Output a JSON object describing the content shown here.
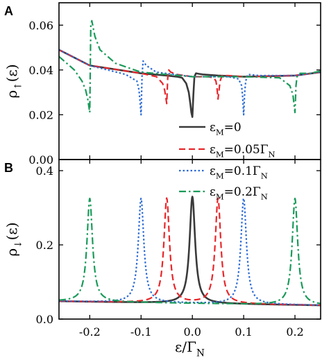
{
  "chart_data": [
    {
      "type": "line",
      "panel_label": "A",
      "ylabel": {
        "base": "ρ",
        "sub": "↑",
        "arg": "(ε)"
      },
      "xlim": [
        -0.26,
        0.25
      ],
      "ylim": [
        0.0,
        0.07
      ],
      "yticks": [
        0.0,
        0.02,
        0.04,
        0.06
      ],
      "ytick_labels": [
        "0.00",
        "0.02",
        "0.04",
        "0.06"
      ],
      "xticks": [
        -0.2,
        -0.1,
        0.0,
        0.1,
        0.2
      ],
      "series": [
        {
          "name": "εM=0",
          "color": "#3a3a3a",
          "style": "solid",
          "x": [
            -0.26,
            -0.2,
            -0.1,
            -0.05,
            -0.03,
            -0.02,
            -0.012,
            -0.007,
            -0.004,
            -0.002,
            0.0,
            0.002,
            0.004,
            0.007,
            0.012,
            0.02,
            0.05,
            0.1,
            0.2,
            0.25
          ],
          "y": [
            0.049,
            0.042,
            0.0385,
            0.0375,
            0.037,
            0.0365,
            0.034,
            0.03,
            0.025,
            0.021,
            0.019,
            0.029,
            0.037,
            0.0385,
            0.0383,
            0.038,
            0.0375,
            0.037,
            0.0375,
            0.039
          ]
        },
        {
          "name": "εM=0.05ΓN",
          "color": "#e8262a",
          "style": "dashed",
          "x": [
            -0.26,
            -0.2,
            -0.1,
            -0.07,
            -0.058,
            -0.054,
            -0.052,
            -0.05,
            -0.048,
            -0.046,
            -0.042,
            -0.03,
            0.0,
            0.03,
            0.042,
            0.046,
            0.048,
            0.05,
            0.052,
            0.054,
            0.058,
            0.07,
            0.1,
            0.2,
            0.25
          ],
          "y": [
            0.049,
            0.042,
            0.0385,
            0.037,
            0.034,
            0.031,
            0.028,
            0.025,
            0.0365,
            0.04,
            0.039,
            0.038,
            0.037,
            0.037,
            0.0365,
            0.035,
            0.032,
            0.027,
            0.031,
            0.035,
            0.0375,
            0.0375,
            0.037,
            0.0375,
            0.039
          ]
        },
        {
          "name": "εM=0.1ΓN",
          "color": "#2b6ad6",
          "style": "dotted",
          "x": [
            -0.26,
            -0.2,
            -0.13,
            -0.108,
            -0.104,
            -0.102,
            -0.1,
            -0.098,
            -0.096,
            -0.09,
            -0.07,
            0.0,
            0.07,
            0.09,
            0.096,
            0.098,
            0.1,
            0.102,
            0.104,
            0.108,
            0.13,
            0.2,
            0.25
          ],
          "y": [
            0.049,
            0.042,
            0.038,
            0.035,
            0.031,
            0.026,
            0.02,
            0.038,
            0.044,
            0.042,
            0.039,
            0.037,
            0.037,
            0.036,
            0.033,
            0.028,
            0.02,
            0.03,
            0.035,
            0.038,
            0.0375,
            0.0375,
            0.039
          ]
        },
        {
          "name": "εM=0.2ΓN",
          "color": "#1a9a5a",
          "style": "dashdot",
          "x": [
            -0.26,
            -0.23,
            -0.215,
            -0.208,
            -0.204,
            -0.202,
            -0.2,
            -0.198,
            -0.196,
            -0.19,
            -0.18,
            -0.15,
            -0.1,
            0.0,
            0.1,
            0.17,
            0.19,
            0.196,
            0.198,
            0.2,
            0.202,
            0.204,
            0.21,
            0.23,
            0.25
          ],
          "y": [
            0.046,
            0.04,
            0.035,
            0.031,
            0.027,
            0.024,
            0.021,
            0.06,
            0.062,
            0.055,
            0.049,
            0.043,
            0.039,
            0.037,
            0.037,
            0.0365,
            0.033,
            0.029,
            0.025,
            0.021,
            0.033,
            0.037,
            0.0385,
            0.0385,
            0.0395
          ]
        }
      ]
    },
    {
      "type": "line",
      "panel_label": "B",
      "ylabel": {
        "base": "ρ",
        "sub": "↓",
        "arg": "(ε)"
      },
      "xlabel": {
        "base": "ε/Γ",
        "sub": "N"
      },
      "xlim": [
        -0.26,
        0.25
      ],
      "ylim": [
        0.0,
        0.43
      ],
      "yticks": [
        0.0,
        0.2,
        0.4
      ],
      "ytick_labels": [
        "0.0",
        "0.2",
        "0.4"
      ],
      "xticks": [
        -0.2,
        -0.1,
        0.0,
        0.1,
        0.2
      ],
      "xtick_labels": [
        "-0.2",
        "-0.1",
        "0.0",
        "0.1",
        "0.2"
      ],
      "lorentz": {
        "base_left": 0.048,
        "base_right": 0.037,
        "gamma": 0.0065
      },
      "series": [
        {
          "name": "εM=0",
          "color": "#3a3a3a",
          "style": "solid",
          "peaks_x": [
            0.0
          ],
          "peak_y": 0.33
        },
        {
          "name": "εM=0.05ΓN",
          "color": "#e8262a",
          "style": "dashed",
          "peaks_x": [
            -0.05,
            0.05
          ],
          "peak_y": 0.325
        },
        {
          "name": "εM=0.1ΓN",
          "color": "#2b6ad6",
          "style": "dotted",
          "peaks_x": [
            -0.1,
            0.1
          ],
          "peak_y": 0.325
        },
        {
          "name": "εM=0.2ΓN",
          "color": "#1a9a5a",
          "style": "dashdot",
          "peaks_x": [
            -0.2,
            0.2
          ],
          "peak_y": 0.325
        }
      ]
    }
  ],
  "legend": {
    "placement": "right, spanning panels A and B",
    "entries": [
      {
        "base": "ε",
        "sub": "M",
        "rest": "=0",
        "color": "#3a3a3a",
        "style": "solid"
      },
      {
        "base": "ε",
        "sub": "M",
        "rest": "=0.05Γ",
        "rest_sub": "N",
        "color": "#e8262a",
        "style": "dashed"
      },
      {
        "base": "ε",
        "sub": "M",
        "rest": "=0.1Γ",
        "rest_sub": "N",
        "color": "#2b6ad6",
        "style": "dotted"
      },
      {
        "base": "ε",
        "sub": "M",
        "rest": "=0.2Γ",
        "rest_sub": "N",
        "color": "#1a9a5a",
        "style": "dashdot"
      }
    ]
  }
}
